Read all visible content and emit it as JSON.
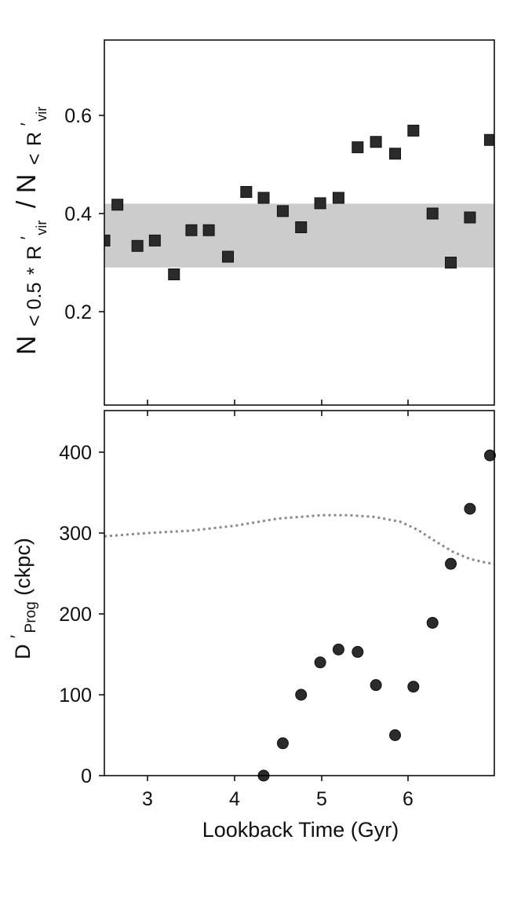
{
  "colors": {
    "marker": "#2b2b2b",
    "band": "#cccccc",
    "dotted_line": "#8a8a8a",
    "axis": "#000000"
  },
  "chart_data": [
    {
      "type": "scatter",
      "panel": "top",
      "marker": "square",
      "xlim": [
        2.5,
        6.98
      ],
      "ylim": [
        0.0,
        0.76
      ],
      "yticks": [
        "0.2",
        "0.4",
        "0.6"
      ],
      "ylabel": {
        "main": "N",
        "sub1": "< 0.5",
        "star": "*",
        "r1": "R",
        "prime1": "′",
        "vir1": "vir",
        "slash": "/",
        "main2": "N",
        "sub2": "<",
        "r2": "R",
        "prime2": "′",
        "vir2": "vir"
      },
      "band": [
        0.29,
        0.42
      ],
      "x": [
        2.5,
        2.65,
        2.88,
        3.08,
        3.3,
        3.5,
        3.7,
        3.92,
        4.13,
        4.33,
        4.55,
        4.76,
        4.98,
        5.19,
        5.41,
        5.62,
        5.84,
        6.05,
        6.27,
        6.48,
        6.7,
        6.93
      ],
      "y": [
        0.345,
        0.418,
        0.334,
        0.345,
        0.276,
        0.366,
        0.366,
        0.312,
        0.444,
        0.432,
        0.405,
        0.372,
        0.421,
        0.432,
        0.535,
        0.546,
        0.522,
        0.569,
        0.4,
        0.3,
        0.392,
        0.55
      ]
    },
    {
      "type": "scatter",
      "panel": "bottom",
      "marker": "circle",
      "xlim": [
        2.5,
        6.98
      ],
      "ylim": [
        0,
        450
      ],
      "xticks": [
        "3",
        "4",
        "5",
        "6"
      ],
      "yticks": [
        "0",
        "100",
        "200",
        "300",
        "400"
      ],
      "xlabel": "Lookback Time (Gyr)",
      "ylabel": {
        "d": "D",
        "prime": "′",
        "sub": "Prog",
        "rest": "(ckpc)"
      },
      "x": [
        4.33,
        4.55,
        4.76,
        4.98,
        5.19,
        5.41,
        5.62,
        5.84,
        6.05,
        6.27,
        6.48,
        6.7,
        6.93
      ],
      "y": [
        0,
        40,
        100,
        140,
        156,
        153,
        112,
        50,
        110,
        189,
        262,
        330,
        396
      ],
      "reference_line": {
        "style": "dotted",
        "x": [
          2.5,
          3.0,
          3.5,
          4.0,
          4.5,
          5.0,
          5.3,
          5.6,
          5.9,
          6.1,
          6.3,
          6.5,
          6.7,
          6.9,
          6.98
        ],
        "y": [
          296,
          300,
          303,
          309,
          318,
          322,
          322,
          320,
          314,
          304,
          290,
          277,
          268,
          263,
          262
        ]
      }
    }
  ]
}
